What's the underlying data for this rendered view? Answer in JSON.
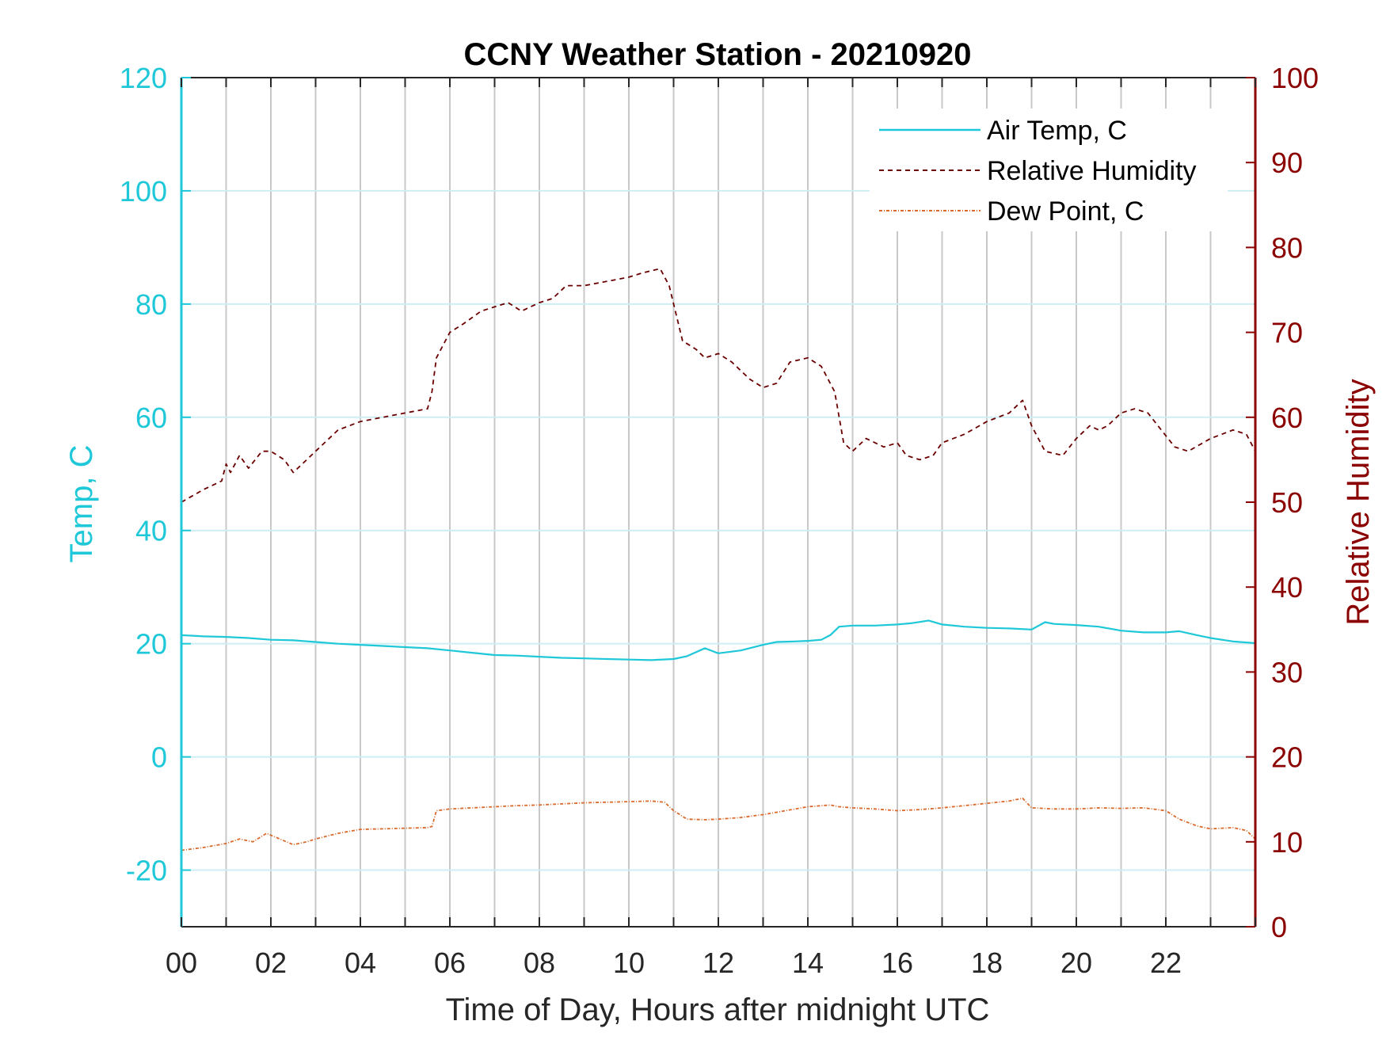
{
  "chart_data": {
    "type": "line",
    "title": "CCNY Weather Station - 20210920",
    "xlabel": "Time of Day, Hours after midnight UTC",
    "ylabel_left": "Temp, C",
    "ylabel_right": "Relative Humidity",
    "xlim": [
      0,
      24
    ],
    "ylim_left": [
      -30,
      120
    ],
    "ylim_right": [
      0,
      100
    ],
    "x_ticks": [
      0,
      2,
      4,
      6,
      8,
      10,
      12,
      14,
      16,
      18,
      20,
      22
    ],
    "x_tick_labels": [
      "00",
      "02",
      "04",
      "06",
      "08",
      "10",
      "12",
      "14",
      "16",
      "18",
      "20",
      "22"
    ],
    "y_left_ticks": [
      -20,
      0,
      20,
      40,
      60,
      80,
      100,
      120
    ],
    "y_left_tick_labels": [
      "-20",
      "0",
      "20",
      "40",
      "60",
      "80",
      "100",
      "120"
    ],
    "y_right_ticks": [
      0,
      10,
      20,
      30,
      40,
      50,
      60,
      70,
      80,
      90,
      100
    ],
    "y_right_tick_labels": [
      "0",
      "10",
      "20",
      "30",
      "40",
      "50",
      "60",
      "70",
      "80",
      "90",
      "100"
    ],
    "grid": true,
    "legend_position": "top-right",
    "colors": {
      "air_temp": "#1ec8d8",
      "relative_humidity": "#6b0000",
      "dew_point": "#d96a2b",
      "left_axis": "#1ec8d8",
      "right_axis": "#8b0000",
      "grid_vertical": "#c8c8c8",
      "grid_horizontal": "#cdeef3"
    },
    "series": [
      {
        "name": "Air Temp, C",
        "axis": "left",
        "style": "solid",
        "x": [
          0,
          0.5,
          1,
          1.5,
          2,
          2.5,
          3,
          3.5,
          4,
          4.5,
          5,
          5.5,
          6,
          6.5,
          7,
          7.5,
          8,
          8.5,
          9,
          9.5,
          10,
          10.5,
          11,
          11.3,
          11.7,
          12,
          12.5,
          13,
          13.3,
          13.7,
          14,
          14.3,
          14.5,
          14.7,
          15,
          15.5,
          16,
          16.3,
          16.7,
          17,
          17.5,
          18,
          18.5,
          19,
          19.3,
          19.5,
          20,
          20.5,
          21,
          21.5,
          22,
          22.3,
          22.7,
          23,
          23.5,
          24
        ],
        "y": [
          21.5,
          21.3,
          21.2,
          21.0,
          20.7,
          20.6,
          20.3,
          20.0,
          19.8,
          19.6,
          19.4,
          19.2,
          18.8,
          18.4,
          18.0,
          17.9,
          17.7,
          17.5,
          17.4,
          17.3,
          17.2,
          17.1,
          17.3,
          17.8,
          19.2,
          18.3,
          18.8,
          19.8,
          20.3,
          20.4,
          20.5,
          20.7,
          21.5,
          23.0,
          23.2,
          23.2,
          23.4,
          23.6,
          24.1,
          23.4,
          23.0,
          22.8,
          22.7,
          22.5,
          23.8,
          23.5,
          23.3,
          23.0,
          22.3,
          22.0,
          22.0,
          22.2,
          21.5,
          21.0,
          20.4,
          20.1
        ]
      },
      {
        "name": "Relative Humidity",
        "axis": "right",
        "style": "dashed",
        "x": [
          0,
          0.5,
          0.9,
          1.0,
          1.1,
          1.3,
          1.5,
          1.8,
          2.0,
          2.3,
          2.5,
          2.7,
          3.0,
          3.5,
          4.0,
          4.5,
          5.0,
          5.5,
          5.6,
          5.7,
          6.0,
          6.3,
          6.7,
          7.0,
          7.3,
          7.6,
          8.0,
          8.3,
          8.6,
          9.0,
          9.5,
          10.0,
          10.3,
          10.7,
          10.9,
          11.2,
          11.5,
          11.7,
          12.0,
          12.3,
          12.7,
          13.0,
          13.3,
          13.6,
          14.0,
          14.3,
          14.6,
          14.8,
          15.0,
          15.3,
          15.7,
          16.0,
          16.2,
          16.5,
          16.8,
          17.0,
          17.5,
          18.0,
          18.5,
          18.8,
          19.0,
          19.3,
          19.7,
          20.0,
          20.3,
          20.5,
          20.7,
          21.0,
          21.3,
          21.6,
          21.9,
          22.2,
          22.5,
          23.0,
          23.5,
          23.8,
          24.0
        ],
        "y": [
          50,
          51.5,
          52.5,
          54.5,
          53.5,
          55.5,
          54,
          56,
          56,
          55,
          53.5,
          54.5,
          56,
          58.5,
          59.5,
          60,
          60.5,
          61,
          63,
          67,
          70,
          71,
          72.5,
          73,
          73.5,
          72.5,
          73.5,
          74,
          75.5,
          75.5,
          76,
          76.5,
          77,
          77.5,
          75.5,
          69,
          68,
          67,
          67.5,
          66.5,
          64.5,
          63.5,
          64,
          66.5,
          67,
          66,
          63,
          57,
          56,
          57.5,
          56.5,
          57,
          55.5,
          55,
          55.5,
          57,
          58,
          59.5,
          60.5,
          62,
          59,
          56,
          55.5,
          57.5,
          59,
          58.5,
          59,
          60.5,
          61,
          60.5,
          58.5,
          56.5,
          56,
          57.5,
          58.5,
          58,
          56
        ]
      },
      {
        "name": "Dew Point, C",
        "axis": "left",
        "style": "dashdot",
        "x": [
          0,
          0.5,
          1.0,
          1.3,
          1.6,
          1.9,
          2.2,
          2.5,
          2.8,
          3.0,
          3.5,
          4.0,
          4.5,
          5.0,
          5.5,
          5.6,
          5.7,
          6.0,
          6.5,
          7.0,
          7.5,
          8.0,
          8.5,
          9.0,
          9.5,
          10.0,
          10.5,
          10.8,
          11.0,
          11.3,
          11.7,
          12.0,
          12.5,
          13.0,
          13.5,
          14.0,
          14.5,
          14.7,
          15.0,
          15.5,
          16.0,
          16.5,
          17.0,
          17.5,
          18.0,
          18.5,
          18.8,
          19.0,
          19.5,
          20.0,
          20.5,
          21.0,
          21.5,
          22.0,
          22.3,
          22.7,
          23.0,
          23.5,
          23.8,
          24.0
        ],
        "y": [
          -16.5,
          -16,
          -15.3,
          -14.5,
          -15,
          -13.5,
          -14.5,
          -15.5,
          -15,
          -14.5,
          -13.5,
          -12.8,
          -12.7,
          -12.6,
          -12.5,
          -12.3,
          -9.5,
          -9.2,
          -9,
          -8.8,
          -8.6,
          -8.5,
          -8.3,
          -8.1,
          -8.0,
          -7.9,
          -7.8,
          -8.0,
          -9.5,
          -11.0,
          -11.1,
          -11.0,
          -10.7,
          -10.2,
          -9.5,
          -8.8,
          -8.5,
          -8.8,
          -9.0,
          -9.2,
          -9.5,
          -9.3,
          -9.0,
          -8.6,
          -8.2,
          -7.8,
          -7.3,
          -9.0,
          -9.2,
          -9.2,
          -9.0,
          -9.1,
          -9.0,
          -9.5,
          -11.0,
          -12.2,
          -12.7,
          -12.5,
          -13.0,
          -14.5
        ]
      }
    ]
  }
}
